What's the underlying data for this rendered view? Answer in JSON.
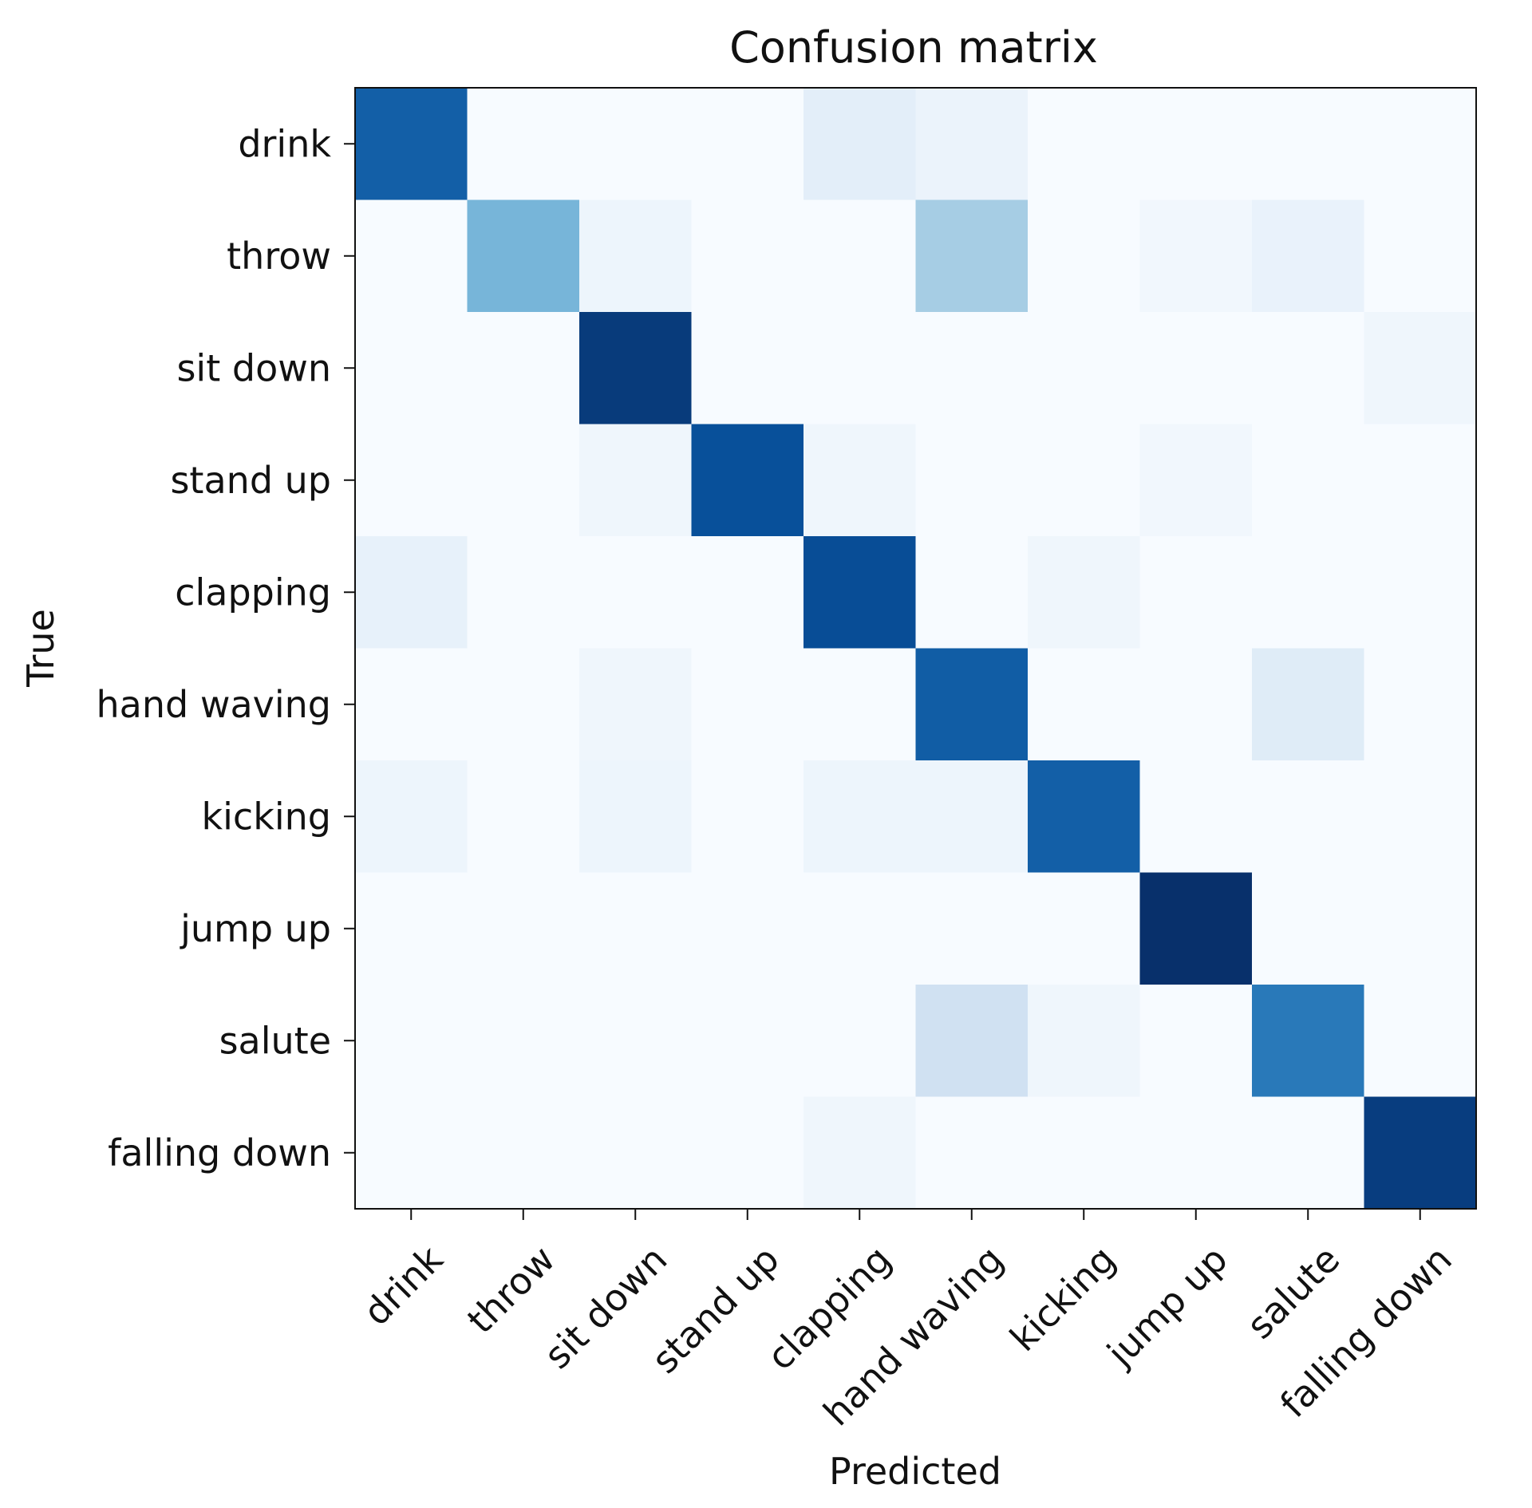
{
  "chart_data": {
    "type": "heatmap",
    "title": "Confusion matrix",
    "xlabel": "Predicted",
    "ylabel": "True",
    "x_categories": [
      "drink",
      "throw",
      "sit down",
      "stand up",
      "clapping",
      "hand waving",
      "kicking",
      "jump up",
      "salute",
      "falling down"
    ],
    "y_categories": [
      "drink",
      "throw",
      "sit down",
      "stand up",
      "clapping",
      "hand waving",
      "kicking",
      "jump up",
      "salute",
      "falling down"
    ],
    "values": [
      [
        0.82,
        0.0,
        0.0,
        0.0,
        0.1,
        0.06,
        0.0,
        0.0,
        0.0,
        0.0
      ],
      [
        0.0,
        0.47,
        0.05,
        0.0,
        0.0,
        0.35,
        0.0,
        0.03,
        0.07,
        0.0
      ],
      [
        0.0,
        0.0,
        0.96,
        0.0,
        0.0,
        0.0,
        0.0,
        0.0,
        0.0,
        0.04
      ],
      [
        0.0,
        0.0,
        0.04,
        0.88,
        0.04,
        0.0,
        0.0,
        0.03,
        0.0,
        0.0
      ],
      [
        0.08,
        0.0,
        0.0,
        0.0,
        0.89,
        0.0,
        0.04,
        0.0,
        0.0,
        0.0
      ],
      [
        0.0,
        0.0,
        0.04,
        0.0,
        0.0,
        0.83,
        0.0,
        0.0,
        0.12,
        0.0
      ],
      [
        0.05,
        0.0,
        0.05,
        0.0,
        0.05,
        0.05,
        0.82,
        0.0,
        0.0,
        0.0
      ],
      [
        0.0,
        0.0,
        0.0,
        0.0,
        0.0,
        0.0,
        0.0,
        1.0,
        0.0,
        0.0
      ],
      [
        0.0,
        0.0,
        0.0,
        0.0,
        0.0,
        0.2,
        0.04,
        0.0,
        0.72,
        0.0
      ],
      [
        0.0,
        0.0,
        0.0,
        0.0,
        0.04,
        0.0,
        0.0,
        0.0,
        0.0,
        0.95
      ]
    ],
    "vmin": 0,
    "vmax": 1,
    "colormap": "Blues",
    "grid": false,
    "colorbar": false
  }
}
